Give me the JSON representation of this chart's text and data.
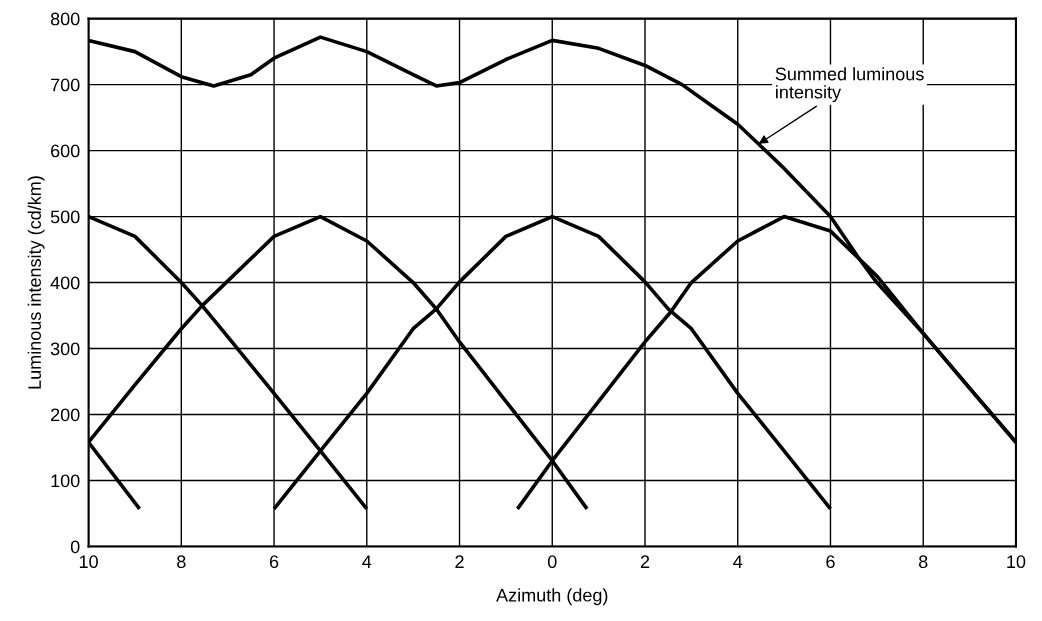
{
  "chart_data": {
    "type": "line",
    "xlabel": "Azimuth (deg)",
    "ylabel": "Luminous intensity (cd/km)",
    "xlim": [
      -10,
      10
    ],
    "ylim": [
      0,
      800
    ],
    "xticks": [
      {
        "value": -10,
        "label": "10"
      },
      {
        "value": -8,
        "label": "8"
      },
      {
        "value": -6,
        "label": "6"
      },
      {
        "value": -4,
        "label": "4"
      },
      {
        "value": -2,
        "label": "2"
      },
      0,
      2,
      4,
      6,
      8,
      10
    ],
    "yticks": [
      0,
      100,
      200,
      300,
      400,
      500,
      600,
      700,
      800
    ],
    "grid": true,
    "legend": false,
    "marker": "none",
    "line_style": "solid",
    "series": [
      {
        "color": "#000000",
        "x": [
          -10,
          -9,
          -8,
          -7.3,
          -6.5,
          -6,
          -5,
          -4,
          -3,
          -2.5,
          -2,
          -1,
          0,
          1,
          2,
          2.8,
          3.4,
          4,
          4.45,
          5,
          6,
          6.6,
          7,
          8,
          9,
          10
        ],
        "values": [
          767,
          750,
          712,
          698,
          715,
          740,
          772,
          750,
          715,
          698,
          703,
          738,
          767,
          755,
          729,
          700,
          670,
          640,
          610,
          573,
          500,
          438,
          400,
          323,
          240,
          158
        ]
      },
      {
        "color": "#000000",
        "x": [
          -10,
          -8.9
        ],
        "values": [
          158,
          57
        ]
      },
      {
        "color": "#000000",
        "x": [
          -10,
          -9,
          -8,
          -7.55,
          -7,
          -6,
          -5,
          -4
        ],
        "values": [
          500,
          470,
          400,
          365,
          318,
          232,
          145,
          57
        ]
      },
      {
        "color": "#000000",
        "x": [
          -10,
          -9,
          -8,
          -7.55,
          -6,
          -5,
          -4,
          -3,
          -2.5,
          -2,
          -1,
          0,
          0.75
        ],
        "values": [
          158,
          245,
          330,
          365,
          470,
          500,
          463,
          400,
          360,
          310,
          220,
          130,
          57
        ]
      },
      {
        "color": "#000000",
        "x": [
          -6,
          -5,
          -4,
          -3,
          -2.5,
          -2,
          -1,
          0,
          1,
          2,
          2.5,
          3,
          4,
          5,
          6
        ],
        "values": [
          57,
          145,
          232,
          330,
          360,
          401,
          470,
          500,
          470,
          401,
          360,
          330,
          232,
          145,
          57
        ]
      },
      {
        "color": "#000000",
        "x": [
          -0.75,
          0,
          1,
          2,
          2.55,
          3,
          4,
          5,
          6,
          7,
          8,
          9,
          10
        ],
        "values": [
          57,
          130,
          220,
          310,
          355,
          400,
          463,
          500,
          478,
          410,
          323,
          240,
          158
        ]
      }
    ],
    "annotations": [
      {
        "text": "Summed luminous\nintensity",
        "x": 4.45,
        "y": 610
      }
    ]
  }
}
